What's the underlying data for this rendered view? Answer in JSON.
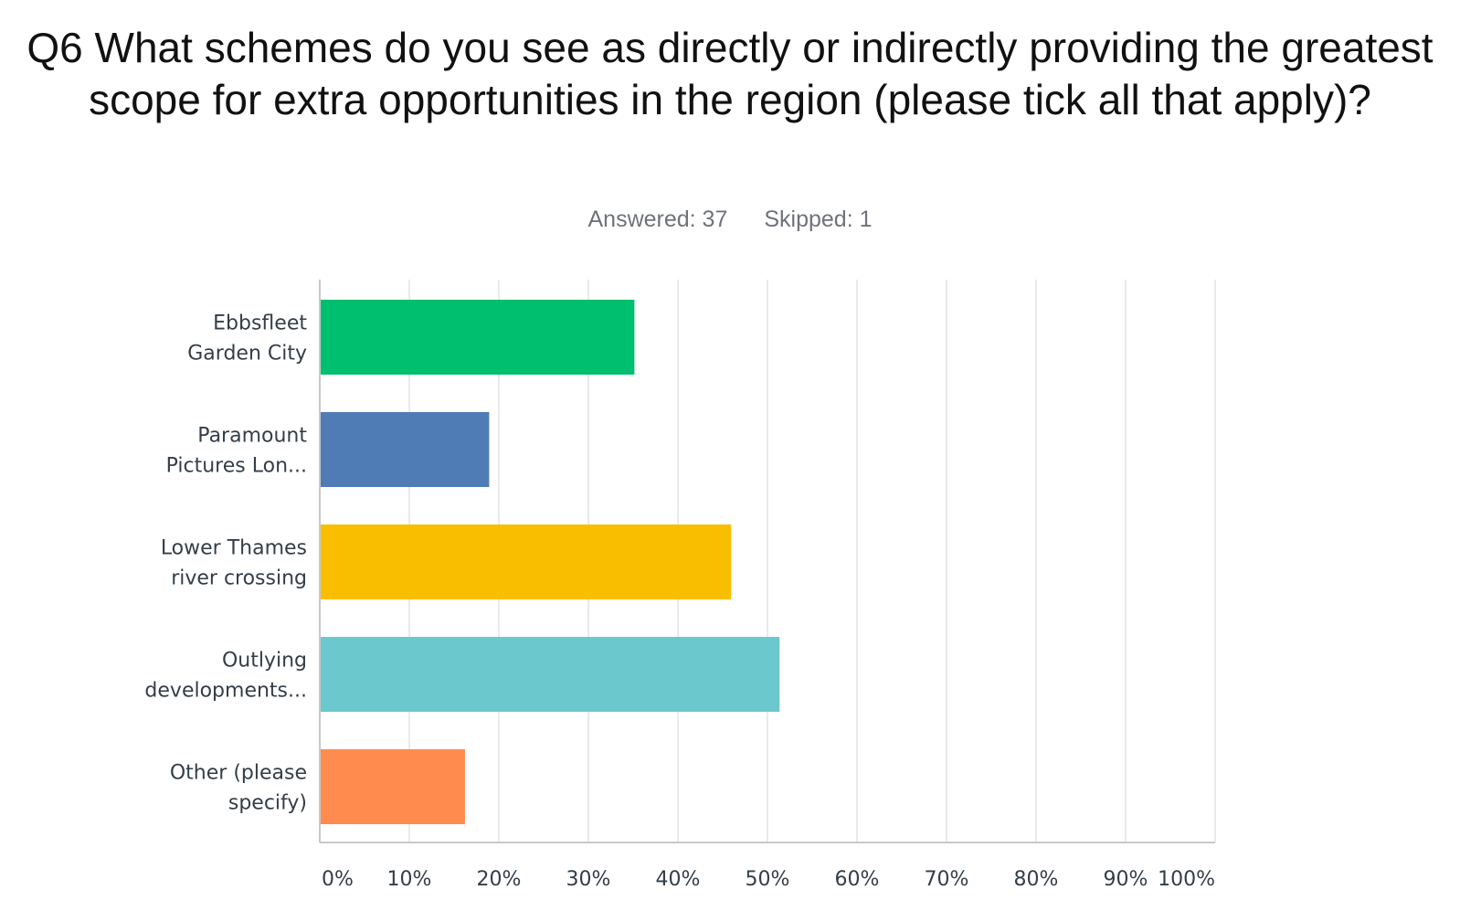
{
  "header": {
    "title": "Q6 What schemes do you see as directly or indirectly providing the greatest scope for extra opportunities in the region (please tick all that apply)?",
    "answered": "Answered: 37",
    "skipped": "Skipped: 1"
  },
  "chart_data": {
    "type": "bar",
    "orientation": "horizontal",
    "title": "Q6 What schemes do you see as directly or indirectly providing the greatest scope for extra opportunities in the region (please tick all that apply)?",
    "categories": [
      [
        "Ebbsfleet",
        "Garden City"
      ],
      [
        "Paramount",
        "Pictures Lon..."
      ],
      [
        "Lower Thames",
        "river crossing"
      ],
      [
        "Outlying",
        "developments..."
      ],
      [
        "Other (please",
        "specify)"
      ]
    ],
    "values": [
      35.14,
      18.92,
      45.95,
      51.35,
      16.22
    ],
    "colors": [
      "#00bf6f",
      "#507cb6",
      "#f9be00",
      "#6bc8cd",
      "#ff8b4f"
    ],
    "xlim": [
      0,
      100
    ],
    "xticks": [
      0,
      10,
      20,
      30,
      40,
      50,
      60,
      70,
      80,
      90,
      100
    ],
    "xtick_labels": [
      "0%",
      "10%",
      "20%",
      "30%",
      "40%",
      "50%",
      "60%",
      "70%",
      "80%",
      "90%",
      "100%"
    ],
    "grid": true,
    "xlabel": "",
    "ylabel": ""
  }
}
